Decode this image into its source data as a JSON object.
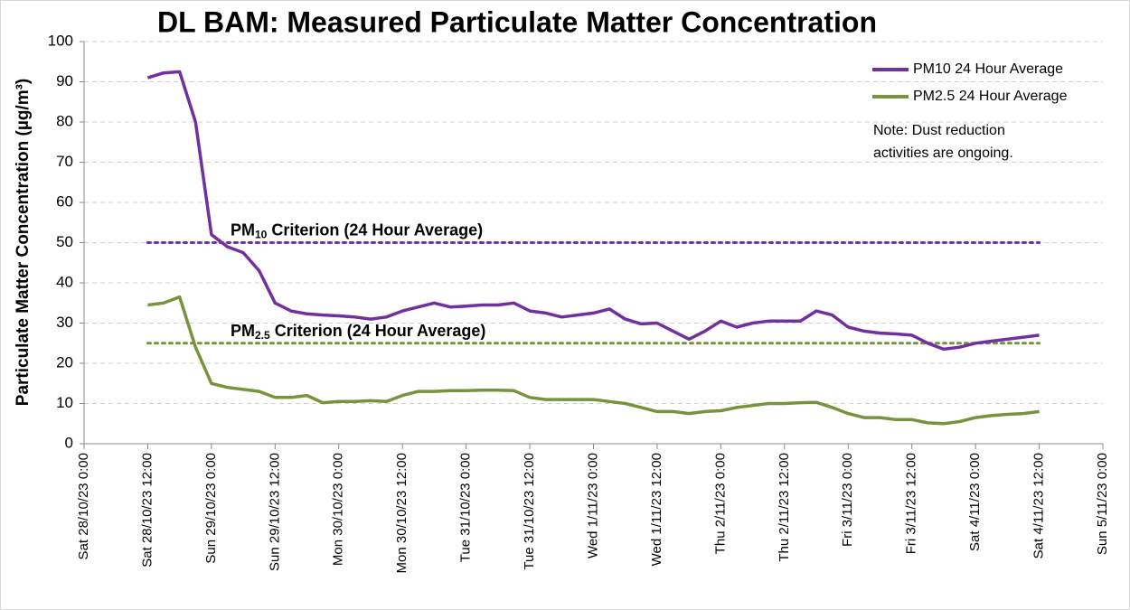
{
  "chart_data": {
    "type": "line",
    "title": "DL BAM: Measured Particulate Matter Concentration",
    "y_label": "Particulate Matter Concentration (µg/m³)",
    "note": [
      "Note: Dust reduction",
      "activities are ongoing."
    ],
    "x": [
      "28/10/23 12:00",
      "28/10/23 15:00",
      "28/10/23 18:00",
      "28/10/23 21:00",
      "29/10/23 0:00",
      "29/10/23 3:00",
      "29/10/23 6:00",
      "29/10/23 9:00",
      "29/10/23 12:00",
      "29/10/23 15:00",
      "29/10/23 18:00",
      "29/10/23 21:00",
      "30/10/23 0:00",
      "30/10/23 3:00",
      "30/10/23 6:00",
      "30/10/23 9:00",
      "30/10/23 12:00",
      "30/10/23 15:00",
      "30/10/23 18:00",
      "30/10/23 21:00",
      "31/10/23 0:00",
      "31/10/23 3:00",
      "31/10/23 6:00",
      "31/10/23 9:00",
      "31/10/23 12:00",
      "31/10/23 15:00",
      "31/10/23 18:00",
      "31/10/23 21:00",
      "1/11/23 0:00",
      "1/11/23 3:00",
      "1/11/23 6:00",
      "1/11/23 9:00",
      "1/11/23 12:00",
      "1/11/23 15:00",
      "1/11/23 18:00",
      "1/11/23 21:00",
      "2/11/23 0:00",
      "2/11/23 3:00",
      "2/11/23 6:00",
      "2/11/23 9:00",
      "2/11/23 12:00",
      "2/11/23 15:00",
      "2/11/23 18:00",
      "2/11/23 21:00",
      "3/11/23 0:00",
      "3/11/23 3:00",
      "3/11/23 6:00",
      "3/11/23 9:00",
      "3/11/23 12:00",
      "3/11/23 15:00",
      "3/11/23 18:00",
      "3/11/23 21:00",
      "4/11/23 0:00",
      "4/11/23 3:00",
      "4/11/23 6:00",
      "4/11/23 9:00",
      "4/11/23 12:00"
    ],
    "series": [
      {
        "name": "PM10 24 Hour Average",
        "color": "#7030a0",
        "values": [
          91,
          92.2,
          92.5,
          80,
          52,
          49,
          47.5,
          43,
          35,
          33,
          32.3,
          32,
          31.8,
          31.5,
          31,
          31.5,
          33,
          34,
          35,
          34,
          34.2,
          34.5,
          34.5,
          35,
          33,
          32.5,
          31.5,
          32,
          32.5,
          33.5,
          31,
          29.8,
          30,
          28,
          26,
          28,
          30.5,
          29,
          30,
          30.5,
          30.5,
          30.5,
          33,
          32,
          29,
          28,
          27.5,
          27.3,
          27,
          25,
          23.5,
          24,
          25,
          25.5,
          26,
          26.5,
          27
        ]
      },
      {
        "name": "PM2.5 24 Hour Average",
        "color": "#77933c",
        "values": [
          34.5,
          35,
          36.5,
          24,
          15,
          14,
          13.5,
          13,
          11.5,
          11.5,
          12,
          10.2,
          10.5,
          10.5,
          10.7,
          10.5,
          12,
          13,
          13,
          13.2,
          13.2,
          13.3,
          13.3,
          13.2,
          11.5,
          11,
          11,
          11,
          11,
          10.5,
          10,
          9,
          8,
          8,
          7.5,
          8,
          8.2,
          9,
          9.5,
          10,
          10,
          10.2,
          10.3,
          9,
          7.5,
          6.5,
          6.5,
          6,
          6,
          5.2,
          5,
          5.5,
          6.5,
          7,
          7.3,
          7.5,
          8
        ]
      }
    ],
    "criteria": [
      {
        "prefix": "PM",
        "subscript": "10",
        "suffix": " Criterion (24 Hour Average)",
        "value": 50,
        "color": "#7030a0",
        "from": "28/10/23 12:00",
        "to": "4/11/23 12:00"
      },
      {
        "prefix": "PM",
        "subscript": "2.5",
        "suffix": " Criterion (24 Hour Average)",
        "value": 25,
        "color": "#77933c",
        "from": "28/10/23 12:00",
        "to": "4/11/23 12:00"
      }
    ],
    "xlim": [
      "28/10/23 0:00",
      "5/11/23 0:00"
    ],
    "xticks": [
      "Sat 28/10/23 0:00",
      "Sat 28/10/23 12:00",
      "Sun 29/10/23 0:00",
      "Sun 29/10/23 12:00",
      "Mon 30/10/23 0:00",
      "Mon 30/10/23 12:00",
      "Tue 31/10/23 0:00",
      "Tue 31/10/23 12:00",
      "Wed 1/11/23 0:00",
      "Wed 1/11/23 12:00",
      "Thu 2/11/23 0:00",
      "Thu 2/11/23 12:00",
      "Fri 3/11/23 0:00",
      "Fri 3/11/23 12:00",
      "Sat 4/11/23 0:00",
      "Sat 4/11/23 12:00",
      "Sun 5/11/23 0:00"
    ],
    "ylim": [
      0,
      100
    ],
    "yticks": [
      0,
      10,
      20,
      30,
      40,
      50,
      60,
      70,
      80,
      90,
      100
    ],
    "grid": true,
    "legend": "top-right"
  }
}
